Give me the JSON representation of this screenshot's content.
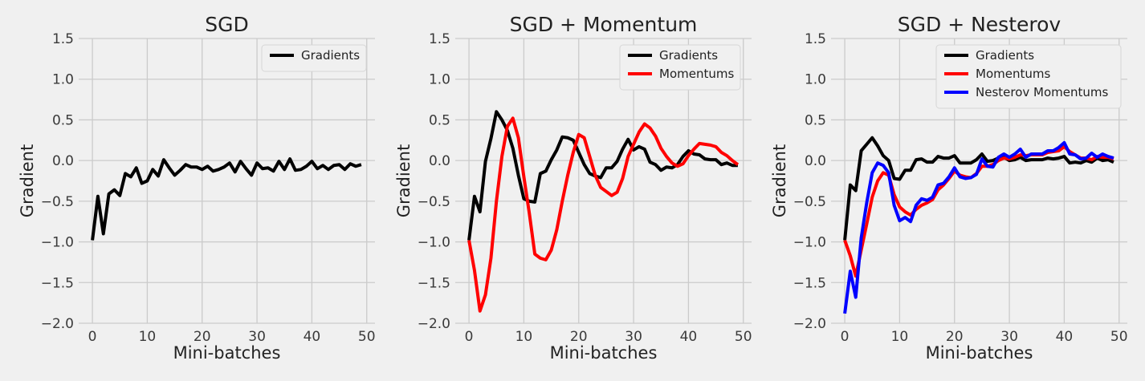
{
  "chart_data": [
    {
      "type": "line",
      "title": "SGD",
      "xlabel": "Mini-batches",
      "ylabel": "Gradient",
      "xlim": [
        -2.5,
        51.5
      ],
      "ylim": [
        -2.0,
        1.5
      ],
      "xticks": [
        0,
        10,
        20,
        30,
        40,
        50
      ],
      "yticks": [
        -2.0,
        -1.5,
        -1.0,
        -0.5,
        0.0,
        0.5,
        1.0,
        1.5
      ],
      "ytick_labels": [
        "−2.0",
        "−1.5",
        "−1.0",
        "−0.5",
        "0.0",
        "0.5",
        "1.0",
        "1.5"
      ],
      "grid": true,
      "legend_position": "top-right",
      "series": [
        {
          "name": "Gradients",
          "color": "#000000",
          "values": [
            -0.98,
            -0.44,
            -0.9,
            -0.41,
            -0.36,
            -0.43,
            -0.16,
            -0.2,
            -0.09,
            -0.28,
            -0.25,
            -0.11,
            -0.19,
            0.01,
            -0.09,
            -0.18,
            -0.12,
            -0.05,
            -0.08,
            -0.08,
            -0.11,
            -0.07,
            -0.13,
            -0.11,
            -0.08,
            -0.03,
            -0.14,
            -0.01,
            -0.1,
            -0.18,
            -0.03,
            -0.1,
            -0.09,
            -0.13,
            -0.01,
            -0.11,
            0.02,
            -0.12,
            -0.11,
            -0.07,
            -0.01,
            -0.1,
            -0.06,
            -0.11,
            -0.06,
            -0.05,
            -0.11,
            -0.04,
            -0.07,
            -0.05
          ]
        }
      ]
    },
    {
      "type": "line",
      "title": "SGD + Momentum",
      "xlabel": "Mini-batches",
      "ylabel": "Gradient",
      "xlim": [
        -2.5,
        51.5
      ],
      "ylim": [
        -2.0,
        1.5
      ],
      "xticks": [
        0,
        10,
        20,
        30,
        40,
        50
      ],
      "yticks": [
        -2.0,
        -1.5,
        -1.0,
        -0.5,
        0.0,
        0.5,
        1.0,
        1.5
      ],
      "ytick_labels": [
        "−2.0",
        "−1.5",
        "−1.0",
        "−0.5",
        "0.0",
        "0.5",
        "1.0",
        "1.5"
      ],
      "grid": true,
      "legend_position": "top-right",
      "series": [
        {
          "name": "Gradients",
          "color": "#000000",
          "values": [
            -0.98,
            -0.44,
            -0.63,
            -0.01,
            0.27,
            0.6,
            0.5,
            0.37,
            0.15,
            -0.18,
            -0.47,
            -0.5,
            -0.51,
            -0.16,
            -0.13,
            0.01,
            0.13,
            0.29,
            0.28,
            0.25,
            0.1,
            -0.05,
            -0.16,
            -0.19,
            -0.21,
            -0.09,
            -0.09,
            -0.01,
            0.14,
            0.26,
            0.13,
            0.17,
            0.14,
            -0.02,
            -0.05,
            -0.12,
            -0.08,
            -0.09,
            -0.05,
            0.05,
            0.12,
            0.08,
            0.07,
            0.02,
            0.01,
            0.01,
            -0.05,
            -0.03,
            -0.06,
            -0.06
          ]
        },
        {
          "name": "Momentums",
          "color": "#ff0000",
          "values": [
            -0.98,
            -1.35,
            -1.85,
            -1.65,
            -1.2,
            -0.5,
            0.05,
            0.42,
            0.52,
            0.28,
            -0.2,
            -0.65,
            -1.15,
            -1.2,
            -1.22,
            -1.1,
            -0.85,
            -0.5,
            -0.18,
            0.1,
            0.32,
            0.28,
            0.05,
            -0.18,
            -0.33,
            -0.38,
            -0.43,
            -0.39,
            -0.22,
            0.05,
            0.2,
            0.35,
            0.45,
            0.4,
            0.3,
            0.15,
            0.05,
            -0.03,
            -0.07,
            -0.04,
            0.06,
            0.14,
            0.21,
            0.2,
            0.19,
            0.17,
            0.1,
            0.06,
            0.0,
            -0.05
          ]
        }
      ]
    },
    {
      "type": "line",
      "title": "SGD + Nesterov",
      "xlabel": "Mini-batches",
      "ylabel": "Gradient",
      "xlim": [
        -2.5,
        51.5
      ],
      "ylim": [
        -2.0,
        1.5
      ],
      "xticks": [
        0,
        10,
        20,
        30,
        40,
        50
      ],
      "yticks": [
        -2.0,
        -1.5,
        -1.0,
        -0.5,
        0.0,
        0.5,
        1.0,
        1.5
      ],
      "ytick_labels": [
        "−2.0",
        "−1.5",
        "−1.0",
        "−0.5",
        "0.0",
        "0.5",
        "1.0",
        "1.5"
      ],
      "grid": true,
      "legend_position": "top-right",
      "series": [
        {
          "name": "Gradients",
          "color": "#000000",
          "values": [
            -0.98,
            -0.3,
            -0.37,
            0.12,
            0.2,
            0.28,
            0.18,
            0.06,
            0.0,
            -0.22,
            -0.23,
            -0.12,
            -0.12,
            0.01,
            0.02,
            -0.02,
            -0.02,
            0.05,
            0.03,
            0.03,
            0.06,
            -0.03,
            -0.03,
            -0.03,
            0.01,
            0.08,
            -0.01,
            0.0,
            0.03,
            0.04,
            0.0,
            0.01,
            0.04,
            0.0,
            0.01,
            0.01,
            0.01,
            0.03,
            0.02,
            0.03,
            0.05,
            -0.03,
            -0.02,
            -0.03,
            0.0,
            -0.02,
            0.03,
            0.0,
            0.01,
            -0.02
          ]
        },
        {
          "name": "Momentums",
          "color": "#ff0000",
          "values": [
            -0.98,
            -1.17,
            -1.42,
            -1.1,
            -0.78,
            -0.45,
            -0.25,
            -0.15,
            -0.18,
            -0.42,
            -0.57,
            -0.63,
            -0.67,
            -0.6,
            -0.55,
            -0.52,
            -0.48,
            -0.36,
            -0.3,
            -0.22,
            -0.13,
            -0.18,
            -0.2,
            -0.21,
            -0.16,
            -0.07,
            -0.07,
            -0.05,
            0.0,
            0.03,
            0.02,
            0.04,
            0.07,
            0.06,
            0.07,
            0.07,
            0.07,
            0.1,
            0.11,
            0.12,
            0.17,
            0.11,
            0.07,
            0.03,
            0.03,
            0.01,
            0.05,
            0.04,
            0.04,
            0.02
          ]
        },
        {
          "name": "Nesterov Momentums",
          "color": "#0000ff",
          "values": [
            -1.88,
            -1.36,
            -1.68,
            -0.95,
            -0.52,
            -0.15,
            -0.03,
            -0.06,
            -0.15,
            -0.55,
            -0.74,
            -0.7,
            -0.75,
            -0.55,
            -0.47,
            -0.49,
            -0.45,
            -0.3,
            -0.28,
            -0.2,
            -0.09,
            -0.2,
            -0.22,
            -0.21,
            -0.17,
            0.02,
            -0.07,
            -0.08,
            0.04,
            0.08,
            0.04,
            0.08,
            0.14,
            0.04,
            0.08,
            0.08,
            0.08,
            0.12,
            0.12,
            0.16,
            0.22,
            0.08,
            0.07,
            0.02,
            0.03,
            0.09,
            0.04,
            0.08,
            0.05,
            0.03
          ]
        }
      ]
    }
  ]
}
